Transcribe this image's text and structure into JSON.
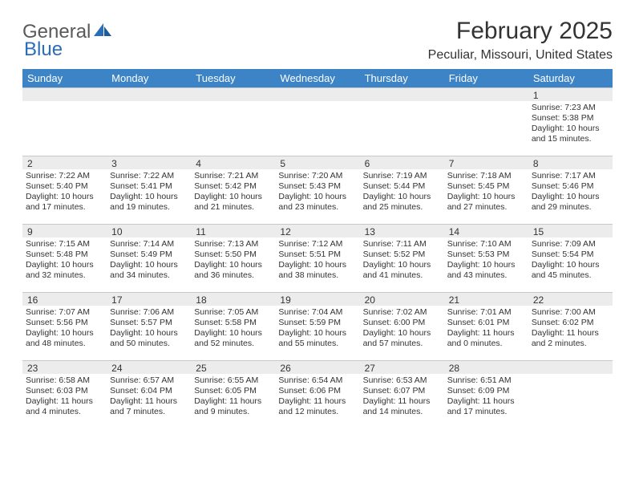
{
  "logo": {
    "text1": "General",
    "text2": "Blue"
  },
  "title": "February 2025",
  "location": "Peculiar, Missouri, United States",
  "colors": {
    "header_bg": "#3c84c6",
    "header_text": "#ffffff",
    "date_bar_bg": "#ececec",
    "border": "#c8c8c8",
    "text": "#333333",
    "logo_gray": "#5a5a5a",
    "logo_blue": "#2a6db8"
  },
  "layout": {
    "columns": 7,
    "weeks": 5,
    "first_day_column": 6
  },
  "day_headers": [
    "Sunday",
    "Monday",
    "Tuesday",
    "Wednesday",
    "Thursday",
    "Friday",
    "Saturday"
  ],
  "days": [
    {
      "date": "1",
      "sunrise": "Sunrise: 7:23 AM",
      "sunset": "Sunset: 5:38 PM",
      "daylight": "Daylight: 10 hours and 15 minutes."
    },
    {
      "date": "2",
      "sunrise": "Sunrise: 7:22 AM",
      "sunset": "Sunset: 5:40 PM",
      "daylight": "Daylight: 10 hours and 17 minutes."
    },
    {
      "date": "3",
      "sunrise": "Sunrise: 7:22 AM",
      "sunset": "Sunset: 5:41 PM",
      "daylight": "Daylight: 10 hours and 19 minutes."
    },
    {
      "date": "4",
      "sunrise": "Sunrise: 7:21 AM",
      "sunset": "Sunset: 5:42 PM",
      "daylight": "Daylight: 10 hours and 21 minutes."
    },
    {
      "date": "5",
      "sunrise": "Sunrise: 7:20 AM",
      "sunset": "Sunset: 5:43 PM",
      "daylight": "Daylight: 10 hours and 23 minutes."
    },
    {
      "date": "6",
      "sunrise": "Sunrise: 7:19 AM",
      "sunset": "Sunset: 5:44 PM",
      "daylight": "Daylight: 10 hours and 25 minutes."
    },
    {
      "date": "7",
      "sunrise": "Sunrise: 7:18 AM",
      "sunset": "Sunset: 5:45 PM",
      "daylight": "Daylight: 10 hours and 27 minutes."
    },
    {
      "date": "8",
      "sunrise": "Sunrise: 7:17 AM",
      "sunset": "Sunset: 5:46 PM",
      "daylight": "Daylight: 10 hours and 29 minutes."
    },
    {
      "date": "9",
      "sunrise": "Sunrise: 7:15 AM",
      "sunset": "Sunset: 5:48 PM",
      "daylight": "Daylight: 10 hours and 32 minutes."
    },
    {
      "date": "10",
      "sunrise": "Sunrise: 7:14 AM",
      "sunset": "Sunset: 5:49 PM",
      "daylight": "Daylight: 10 hours and 34 minutes."
    },
    {
      "date": "11",
      "sunrise": "Sunrise: 7:13 AM",
      "sunset": "Sunset: 5:50 PM",
      "daylight": "Daylight: 10 hours and 36 minutes."
    },
    {
      "date": "12",
      "sunrise": "Sunrise: 7:12 AM",
      "sunset": "Sunset: 5:51 PM",
      "daylight": "Daylight: 10 hours and 38 minutes."
    },
    {
      "date": "13",
      "sunrise": "Sunrise: 7:11 AM",
      "sunset": "Sunset: 5:52 PM",
      "daylight": "Daylight: 10 hours and 41 minutes."
    },
    {
      "date": "14",
      "sunrise": "Sunrise: 7:10 AM",
      "sunset": "Sunset: 5:53 PM",
      "daylight": "Daylight: 10 hours and 43 minutes."
    },
    {
      "date": "15",
      "sunrise": "Sunrise: 7:09 AM",
      "sunset": "Sunset: 5:54 PM",
      "daylight": "Daylight: 10 hours and 45 minutes."
    },
    {
      "date": "16",
      "sunrise": "Sunrise: 7:07 AM",
      "sunset": "Sunset: 5:56 PM",
      "daylight": "Daylight: 10 hours and 48 minutes."
    },
    {
      "date": "17",
      "sunrise": "Sunrise: 7:06 AM",
      "sunset": "Sunset: 5:57 PM",
      "daylight": "Daylight: 10 hours and 50 minutes."
    },
    {
      "date": "18",
      "sunrise": "Sunrise: 7:05 AM",
      "sunset": "Sunset: 5:58 PM",
      "daylight": "Daylight: 10 hours and 52 minutes."
    },
    {
      "date": "19",
      "sunrise": "Sunrise: 7:04 AM",
      "sunset": "Sunset: 5:59 PM",
      "daylight": "Daylight: 10 hours and 55 minutes."
    },
    {
      "date": "20",
      "sunrise": "Sunrise: 7:02 AM",
      "sunset": "Sunset: 6:00 PM",
      "daylight": "Daylight: 10 hours and 57 minutes."
    },
    {
      "date": "21",
      "sunrise": "Sunrise: 7:01 AM",
      "sunset": "Sunset: 6:01 PM",
      "daylight": "Daylight: 11 hours and 0 minutes."
    },
    {
      "date": "22",
      "sunrise": "Sunrise: 7:00 AM",
      "sunset": "Sunset: 6:02 PM",
      "daylight": "Daylight: 11 hours and 2 minutes."
    },
    {
      "date": "23",
      "sunrise": "Sunrise: 6:58 AM",
      "sunset": "Sunset: 6:03 PM",
      "daylight": "Daylight: 11 hours and 4 minutes."
    },
    {
      "date": "24",
      "sunrise": "Sunrise: 6:57 AM",
      "sunset": "Sunset: 6:04 PM",
      "daylight": "Daylight: 11 hours and 7 minutes."
    },
    {
      "date": "25",
      "sunrise": "Sunrise: 6:55 AM",
      "sunset": "Sunset: 6:05 PM",
      "daylight": "Daylight: 11 hours and 9 minutes."
    },
    {
      "date": "26",
      "sunrise": "Sunrise: 6:54 AM",
      "sunset": "Sunset: 6:06 PM",
      "daylight": "Daylight: 11 hours and 12 minutes."
    },
    {
      "date": "27",
      "sunrise": "Sunrise: 6:53 AM",
      "sunset": "Sunset: 6:07 PM",
      "daylight": "Daylight: 11 hours and 14 minutes."
    },
    {
      "date": "28",
      "sunrise": "Sunrise: 6:51 AM",
      "sunset": "Sunset: 6:09 PM",
      "daylight": "Daylight: 11 hours and 17 minutes."
    }
  ]
}
